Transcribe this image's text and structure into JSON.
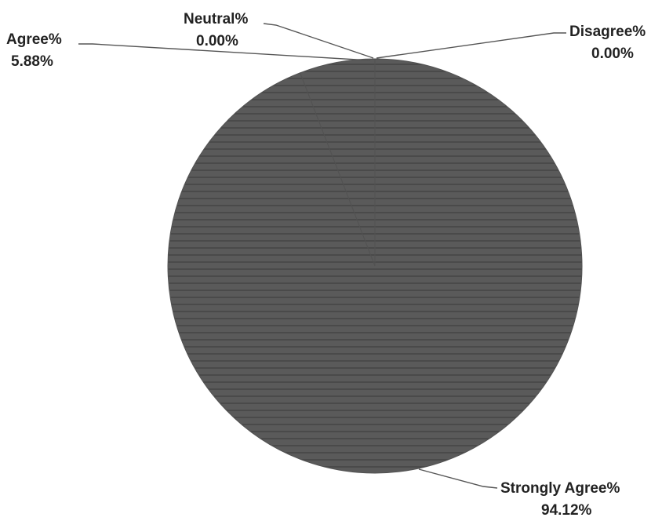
{
  "chart_data": {
    "type": "pie",
    "title": "",
    "slices": [
      {
        "label": "Strongly Agree%",
        "value": 94.12,
        "value_label": "94.12%"
      },
      {
        "label": "Agree%",
        "value": 5.88,
        "value_label": "5.88%"
      },
      {
        "label": "Neutral%",
        "value": 0.0,
        "value_label": "0.00%"
      },
      {
        "label": "Disagree%",
        "value": 0.0,
        "value_label": "0.00%"
      }
    ],
    "colors": {
      "pie_fill": "#5a5a5a",
      "stripe": "#4a4a4a",
      "leader_line": "#555555",
      "text": "#222222"
    },
    "legend": "none (data labels with leader lines)"
  }
}
